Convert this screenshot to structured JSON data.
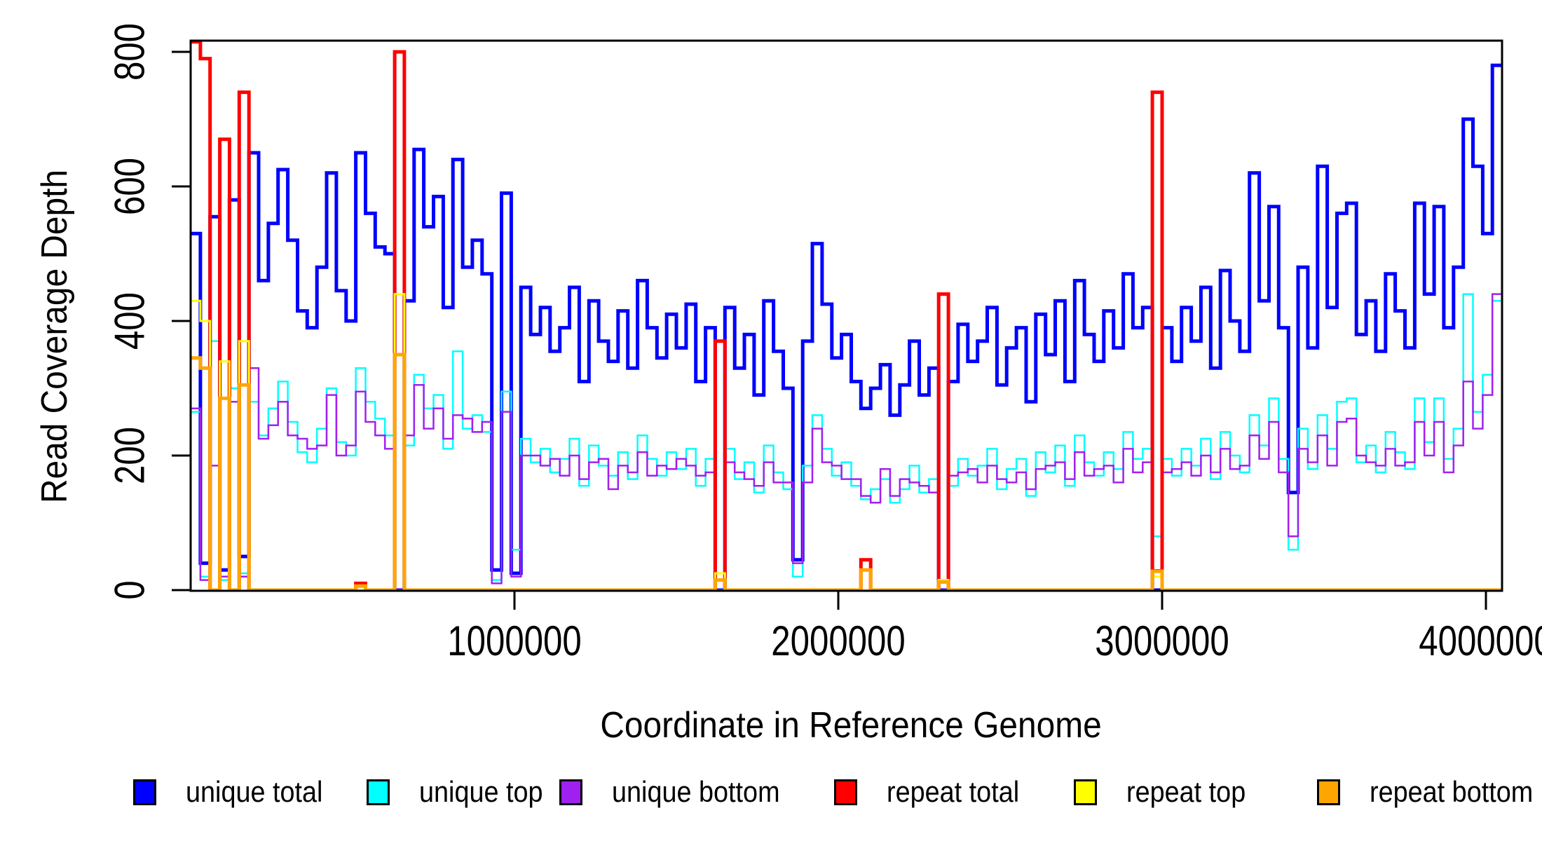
{
  "figure_title": "",
  "axes": {
    "y": {
      "title": "Read Coverage Depth"
    },
    "x": {
      "title": "Coordinate in Reference Genome"
    }
  },
  "legend": {
    "items": [
      {
        "label": "unique total",
        "color": "#0000ff"
      },
      {
        "label": "unique top",
        "color": "#00ffff"
      },
      {
        "label": "unique bottom",
        "color": "#a020f0"
      },
      {
        "label": "repeat total",
        "color": "#ff0000"
      },
      {
        "label": "repeat top",
        "color": "#ffff00"
      },
      {
        "label": "repeat bottom",
        "color": "#ffa500"
      }
    ]
  },
  "chart_data": {
    "type": "line",
    "step": true,
    "title": "",
    "xlabel": "Coordinate in Reference Genome",
    "ylabel": "Read Coverage Depth",
    "xlim": [
      0,
      4050000
    ],
    "ylim": [
      0,
      817
    ],
    "grid": false,
    "legend_position": "bottom",
    "x_start": 0,
    "x_step": 30000,
    "x_ticks": [
      {
        "value": 1000000,
        "label": "1000000"
      },
      {
        "value": 2000000,
        "label": "2000000"
      },
      {
        "value": 3000000,
        "label": "3000000"
      },
      {
        "value": 4000000,
        "label": "4000000"
      }
    ],
    "y_ticks": [
      {
        "value": 0,
        "label": "0"
      },
      {
        "value": 200,
        "label": "200"
      },
      {
        "value": 400,
        "label": "400"
      },
      {
        "value": 600,
        "label": "600"
      },
      {
        "value": 800,
        "label": "800"
      }
    ],
    "series": [
      {
        "name": "unique total",
        "color": "#0000ff",
        "lwd": 5,
        "values": [
          530,
          40,
          555,
          30,
          580,
          50,
          650,
          460,
          545,
          625,
          520,
          415,
          390,
          480,
          620,
          445,
          400,
          650,
          560,
          510,
          500,
          0,
          430,
          655,
          540,
          585,
          420,
          640,
          480,
          520,
          470,
          30,
          590,
          25,
          450,
          380,
          420,
          355,
          390,
          450,
          310,
          430,
          370,
          340,
          415,
          330,
          460,
          390,
          345,
          410,
          360,
          425,
          310,
          390,
          0,
          420,
          330,
          380,
          290,
          430,
          355,
          300,
          45,
          370,
          515,
          425,
          345,
          380,
          310,
          270,
          300,
          335,
          260,
          305,
          370,
          290,
          330,
          0,
          310,
          395,
          340,
          370,
          420,
          305,
          360,
          390,
          280,
          410,
          350,
          430,
          310,
          460,
          380,
          340,
          415,
          360,
          470,
          390,
          420,
          0,
          390,
          340,
          420,
          370,
          450,
          330,
          475,
          400,
          355,
          620,
          430,
          570,
          390,
          145,
          480,
          360,
          630,
          420,
          560,
          575,
          380,
          430,
          355,
          470,
          415,
          360,
          575,
          440,
          570,
          390,
          480,
          700,
          630,
          530,
          780
        ]
      },
      {
        "name": "unique top",
        "color": "#00ffff",
        "lwd": 2.5,
        "values": [
          265,
          20,
          370,
          15,
          300,
          25,
          280,
          230,
          270,
          310,
          250,
          205,
          190,
          240,
          300,
          220,
          200,
          330,
          280,
          255,
          230,
          0,
          215,
          320,
          270,
          290,
          210,
          355,
          240,
          260,
          235,
          15,
          295,
          60,
          225,
          190,
          210,
          175,
          195,
          225,
          155,
          215,
          185,
          170,
          205,
          165,
          230,
          195,
          170,
          205,
          180,
          210,
          155,
          195,
          0,
          210,
          165,
          190,
          145,
          215,
          175,
          150,
          20,
          185,
          260,
          210,
          170,
          190,
          155,
          135,
          150,
          165,
          130,
          150,
          185,
          145,
          165,
          0,
          155,
          195,
          170,
          185,
          210,
          150,
          180,
          195,
          140,
          205,
          175,
          215,
          155,
          230,
          190,
          170,
          205,
          180,
          235,
          195,
          210,
          80,
          195,
          170,
          210,
          185,
          225,
          165,
          235,
          200,
          175,
          260,
          215,
          285,
          195,
          60,
          240,
          180,
          260,
          210,
          280,
          285,
          190,
          215,
          175,
          235,
          205,
          180,
          285,
          220,
          285,
          195,
          240,
          440,
          265,
          320,
          430
        ]
      },
      {
        "name": "unique bottom",
        "color": "#a020f0",
        "lwd": 2.5,
        "values": [
          270,
          15,
          185,
          20,
          280,
          20,
          330,
          225,
          245,
          280,
          230,
          225,
          210,
          215,
          290,
          200,
          215,
          295,
          250,
          230,
          210,
          0,
          230,
          305,
          240,
          270,
          225,
          260,
          255,
          235,
          250,
          10,
          265,
          20,
          200,
          200,
          185,
          195,
          170,
          200,
          165,
          190,
          195,
          150,
          185,
          175,
          205,
          170,
          185,
          180,
          195,
          185,
          170,
          175,
          0,
          190,
          175,
          165,
          155,
          190,
          160,
          160,
          40,
          160,
          240,
          190,
          185,
          165,
          165,
          140,
          130,
          180,
          140,
          165,
          160,
          155,
          145,
          0,
          170,
          175,
          180,
          160,
          185,
          165,
          160,
          175,
          150,
          180,
          185,
          190,
          165,
          205,
          170,
          180,
          185,
          160,
          210,
          175,
          190,
          30,
          175,
          180,
          190,
          170,
          200,
          175,
          210,
          180,
          185,
          230,
          195,
          250,
          175,
          80,
          210,
          190,
          230,
          185,
          250,
          255,
          200,
          190,
          185,
          210,
          185,
          190,
          250,
          200,
          250,
          175,
          215,
          310,
          240,
          290,
          440
        ]
      },
      {
        "name": "repeat total",
        "color": "#ff0000",
        "lwd": 5,
        "values": [
          815,
          790,
          0,
          670,
          0,
          740,
          0,
          0,
          0,
          0,
          0,
          0,
          0,
          0,
          0,
          0,
          0,
          10,
          0,
          0,
          0,
          800,
          0,
          0,
          0,
          0,
          0,
          0,
          0,
          0,
          0,
          0,
          0,
          0,
          0,
          0,
          0,
          0,
          0,
          0,
          0,
          0,
          0,
          0,
          0,
          0,
          0,
          0,
          0,
          0,
          0,
          0,
          0,
          0,
          370,
          0,
          0,
          0,
          0,
          0,
          0,
          0,
          0,
          0,
          0,
          0,
          0,
          0,
          0,
          45,
          0,
          0,
          0,
          0,
          0,
          0,
          0,
          440,
          0,
          0,
          0,
          0,
          0,
          0,
          0,
          0,
          0,
          0,
          0,
          0,
          0,
          0,
          0,
          0,
          0,
          0,
          0,
          0,
          0,
          740,
          0,
          0,
          0,
          0,
          0,
          0,
          0,
          0,
          0,
          0,
          0,
          0,
          0,
          0,
          0,
          0,
          0,
          0,
          0,
          0,
          0,
          0,
          0,
          0,
          0,
          0,
          0,
          0,
          0,
          0,
          0,
          0,
          0,
          0,
          0
        ]
      },
      {
        "name": "repeat top",
        "color": "#ffff00",
        "lwd": 3,
        "values": [
          430,
          400,
          0,
          340,
          0,
          370,
          0,
          0,
          0,
          0,
          0,
          0,
          0,
          0,
          0,
          0,
          0,
          0,
          0,
          0,
          0,
          440,
          0,
          0,
          0,
          0,
          0,
          0,
          0,
          0,
          0,
          0,
          0,
          0,
          0,
          0,
          0,
          0,
          0,
          0,
          0,
          0,
          0,
          0,
          0,
          0,
          0,
          0,
          0,
          0,
          0,
          0,
          0,
          0,
          25,
          0,
          0,
          0,
          0,
          0,
          0,
          0,
          0,
          0,
          0,
          0,
          0,
          0,
          0,
          0,
          0,
          0,
          0,
          0,
          0,
          0,
          0,
          15,
          0,
          0,
          0,
          0,
          0,
          0,
          0,
          0,
          0,
          0,
          0,
          0,
          0,
          0,
          0,
          0,
          0,
          0,
          0,
          0,
          0,
          20,
          0,
          0,
          0,
          0,
          0,
          0,
          0,
          0,
          0,
          0,
          0,
          0,
          0,
          0,
          0,
          0,
          0,
          0,
          0,
          0,
          0,
          0,
          0,
          0,
          0,
          0,
          0,
          0,
          0,
          0,
          0,
          0,
          0,
          0,
          0
        ]
      },
      {
        "name": "repeat bottom",
        "color": "#ffa500",
        "lwd": 5,
        "values": [
          345,
          330,
          0,
          285,
          0,
          305,
          0,
          0,
          0,
          0,
          0,
          0,
          0,
          0,
          0,
          0,
          0,
          6,
          0,
          0,
          0,
          350,
          0,
          0,
          0,
          0,
          0,
          0,
          0,
          0,
          0,
          0,
          0,
          0,
          0,
          0,
          0,
          0,
          0,
          0,
          0,
          0,
          0,
          0,
          0,
          0,
          0,
          0,
          0,
          0,
          0,
          0,
          0,
          0,
          15,
          0,
          0,
          0,
          0,
          0,
          0,
          0,
          0,
          0,
          0,
          0,
          0,
          0,
          0,
          30,
          0,
          0,
          0,
          0,
          0,
          0,
          0,
          12,
          0,
          0,
          0,
          0,
          0,
          0,
          0,
          0,
          0,
          0,
          0,
          0,
          0,
          0,
          0,
          0,
          0,
          0,
          0,
          0,
          0,
          28,
          0,
          0,
          0,
          0,
          0,
          0,
          0,
          0,
          0,
          0,
          0,
          0,
          0,
          0,
          0,
          0,
          0,
          0,
          0,
          0,
          0,
          0,
          0,
          0,
          0,
          0,
          0,
          0,
          0,
          0,
          0,
          0,
          0,
          0,
          0
        ]
      }
    ]
  }
}
